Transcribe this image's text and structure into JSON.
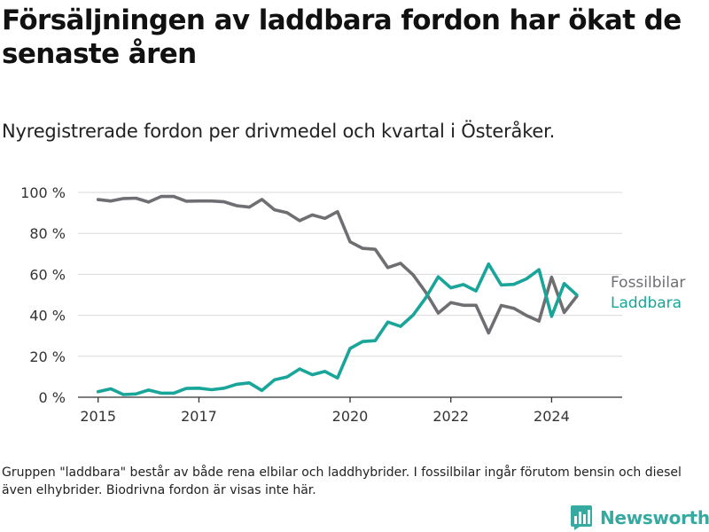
{
  "title": "Försäljningen av laddbara fordon har ökat de senaste åren",
  "subtitle": "Nyregistrerade fordon per drivmedel och kvartal i Österåker.",
  "footnote": "Gruppen \"laddbara\" består av både rena elbilar och laddhybrider. I fossilbilar ingår förutom bensin och diesel även elhybrider. Biodrivna fordon är visas inte här.",
  "brand": {
    "name": "Newsworthy",
    "icon": "bar-chart-logo-icon",
    "color": "#36aaa0"
  },
  "chart_data": {
    "type": "line",
    "title": "Försäljningen av laddbara fordon har ökat de senaste åren",
    "xlabel": "",
    "ylabel": "",
    "xlim": [
      2014.6,
      2025.4
    ],
    "ylim": [
      0,
      100
    ],
    "x_ticks": [
      2015,
      2017,
      2020,
      2022,
      2024
    ],
    "x_tick_labels": [
      "2015",
      "2017",
      "2020",
      "2022",
      "2024"
    ],
    "y_ticks": [
      0,
      20,
      40,
      60,
      80,
      100
    ],
    "y_tick_labels": [
      "0 %",
      "20 %",
      "40 %",
      "60 %",
      "80 %",
      "100 %"
    ],
    "grid": true,
    "legend": "inline-right",
    "x": [
      2015.0,
      2015.25,
      2015.5,
      2015.75,
      2016.0,
      2016.25,
      2016.5,
      2016.75,
      2017.0,
      2017.25,
      2017.5,
      2017.75,
      2018.0,
      2018.25,
      2018.5,
      2018.75,
      2019.0,
      2019.25,
      2019.5,
      2019.75,
      2020.0,
      2020.25,
      2020.5,
      2020.75,
      2021.0,
      2021.25,
      2021.5,
      2021.75,
      2022.0,
      2022.25,
      2022.5,
      2022.75,
      2023.0,
      2023.25,
      2023.5,
      2023.75,
      2024.0,
      2024.25,
      2024.5
    ],
    "series": [
      {
        "name": "Fossilbilar",
        "color": "#6e6e73",
        "values": [
          96.5,
          95.8,
          97.0,
          97.2,
          95.3,
          98.0,
          98.0,
          95.7,
          95.8,
          95.8,
          95.4,
          93.5,
          92.8,
          96.6,
          91.5,
          90.1,
          86.2,
          89.0,
          87.3,
          90.6,
          75.9,
          72.7,
          72.2,
          63.3,
          65.4,
          59.8,
          51.3,
          41.1,
          46.2,
          44.9,
          44.9,
          31.4,
          44.8,
          43.4,
          39.9,
          37.2,
          58.6,
          41.4,
          49.3
        ]
      },
      {
        "name": "Laddbara",
        "color": "#1aa59a",
        "values": [
          2.7,
          4.1,
          1.3,
          1.6,
          3.5,
          2.0,
          2.0,
          4.3,
          4.4,
          3.7,
          4.4,
          6.3,
          7.0,
          3.3,
          8.5,
          9.9,
          13.8,
          11.0,
          12.6,
          9.4,
          23.8,
          27.2,
          27.6,
          36.7,
          34.6,
          40.1,
          48.5,
          58.8,
          53.4,
          55.0,
          51.9,
          65.0,
          54.8,
          55.1,
          57.8,
          62.3,
          39.5,
          55.5,
          49.9
        ]
      }
    ]
  }
}
